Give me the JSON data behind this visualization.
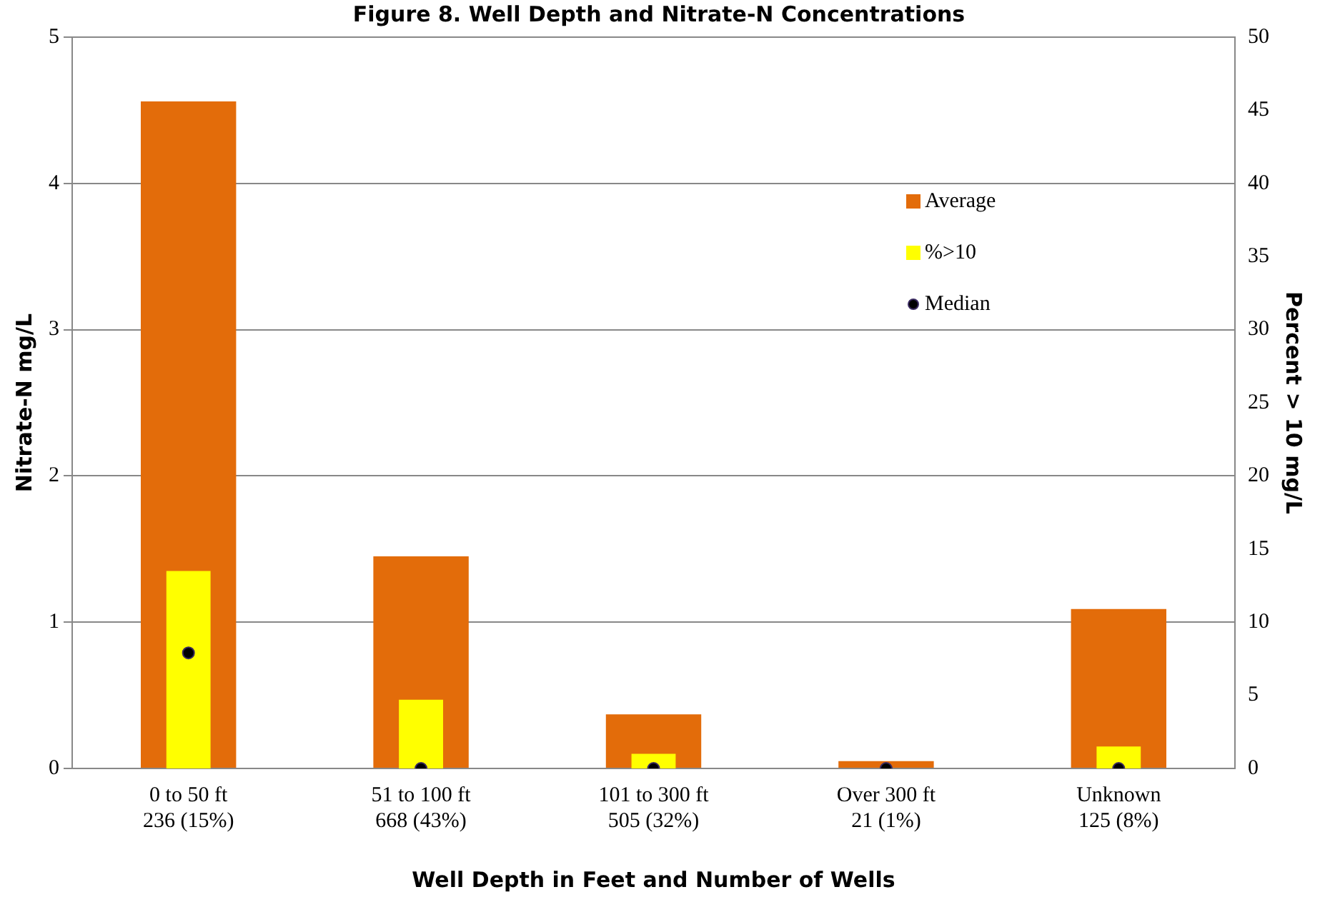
{
  "chart_data": {
    "type": "bar",
    "title": "Figure 8. Well Depth and Nitrate-N Concentrations",
    "xlabel": "Well Depth in Feet and Number of Wells",
    "ylabel": "Nitrate-N mg/L",
    "y2label": "Percent > 10 mg/L",
    "categories": [
      "0 to 50 ft\n236 (15%)",
      "51 to 100 ft\n668 (43%)",
      "101 to 300 ft\n505 (32%)",
      "Over 300 ft\n21 (1%)",
      "Unknown\n125 (8%)"
    ],
    "series": [
      {
        "name": "Average",
        "color": "#e36c0a",
        "values": [
          4.56,
          1.45,
          0.37,
          0.05,
          1.09
        ]
      },
      {
        "name": "%>10",
        "color": "#ffff00",
        "axis": "y2",
        "values": [
          13.5,
          4.7,
          1.0,
          0,
          1.5
        ]
      },
      {
        "name": "Median",
        "type": "scatter",
        "color": "#000000",
        "marker": "circle",
        "x": [
          "0 to 50 ft\n236 (15%)",
          "51 to 100 ft\n668 (43%)",
          "101 to 300 ft\n505 (32%)",
          "Over 300 ft\n21 (1%)",
          "Unknown\n125 (8%)"
        ],
        "values": [
          0.79,
          0,
          0,
          0,
          0
        ]
      }
    ],
    "ylim": [
      0,
      5
    ],
    "yticks": [
      0,
      1,
      2,
      3,
      4,
      5
    ],
    "y2lim": [
      0,
      50
    ],
    "y2ticks": [
      0,
      5,
      10,
      15,
      20,
      25,
      30,
      35,
      40,
      45,
      50
    ],
    "grid": "y",
    "legend": "top right"
  }
}
